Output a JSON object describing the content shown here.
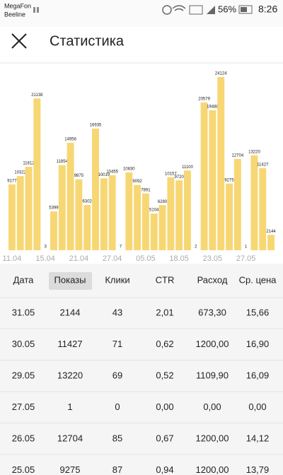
{
  "status_bar": {
    "carrier_1": "MegaFon",
    "carrier_2": "Beeline",
    "battery": "56%",
    "time": "8:26"
  },
  "header": {
    "title": "Статистика"
  },
  "chart_data": {
    "type": "bar",
    "color": "#f7d774",
    "categories": [
      "11.04",
      null,
      null,
      null,
      "15.04",
      null,
      null,
      null,
      "21.04",
      null,
      null,
      null,
      "27.04",
      null,
      null,
      null,
      "05.05",
      null,
      null,
      null,
      "18.05",
      null,
      null,
      null,
      "23.05",
      null,
      null,
      null,
      "27.05",
      null,
      null,
      null
    ],
    "values": [
      9177,
      10322,
      11612,
      21138,
      3,
      5399,
      11854,
      14956,
      9875,
      6302,
      16935,
      10019,
      10455,
      7,
      10830,
      9092,
      7891,
      5104,
      6280,
      10157,
      9720,
      11100,
      2,
      20579,
      19488,
      24124,
      9275,
      12704,
      1,
      13220,
      11427,
      2144
    ],
    "ylim": [
      0,
      25000
    ]
  },
  "table": {
    "columns": [
      "Дата",
      "Показы",
      "Клики",
      "CTR",
      "Расход",
      "Ср. цена"
    ],
    "rows": [
      [
        "31.05",
        "2144",
        "43",
        "2,01",
        "673,30",
        "15,66"
      ],
      [
        "30.05",
        "11427",
        "71",
        "0,62",
        "1200,00",
        "16,90"
      ],
      [
        "29.05",
        "13220",
        "69",
        "0,52",
        "1109,90",
        "16,09"
      ],
      [
        "27.05",
        "1",
        "0",
        "0,00",
        "0,00",
        "0,00"
      ],
      [
        "26.05",
        "12704",
        "85",
        "0,67",
        "1200,00",
        "14,12"
      ],
      [
        "25.05",
        "9275",
        "87",
        "0,94",
        "1200,00",
        "13,79"
      ]
    ]
  }
}
